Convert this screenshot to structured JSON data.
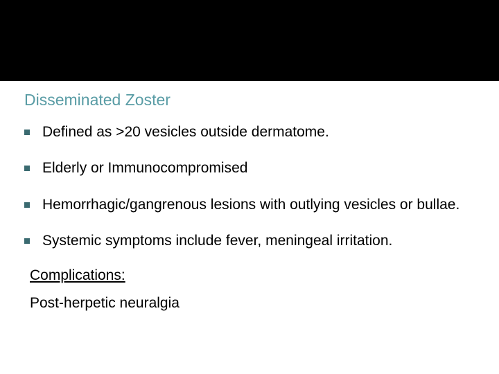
{
  "slide": {
    "background_color": "#ffffff",
    "header": {
      "height": 117,
      "background_color": "#000000"
    },
    "heading": {
      "text": "Disseminated Zoster",
      "color": "#599ca5",
      "font_size": 23
    },
    "bullets": [
      {
        "text": "Defined as >20 vesicles outside dermatome."
      },
      {
        "text": "Elderly or Immunocompromised"
      },
      {
        "text": "Hemorrhagic/gangrenous lesions with outlying vesicles or bullae."
      },
      {
        "text": "Systemic symptoms include fever, meningeal irritation."
      }
    ],
    "bullet_style": {
      "marker_color": "#3a6a70",
      "marker_size": 8,
      "font_size": 21,
      "text_color": "#000000"
    },
    "complications": {
      "label": "Complications:",
      "text": "Post-herpetic neuralgia",
      "font_size": 21,
      "text_color": "#000000"
    }
  }
}
